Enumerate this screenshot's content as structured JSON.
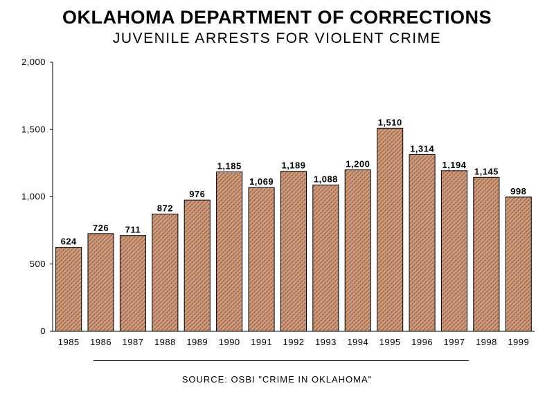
{
  "title": "OKLAHOMA DEPARTMENT OF CORRECTIONS",
  "subtitle": "JUVENILE ARRESTS FOR VIOLENT CRIME",
  "source": "SOURCE: OSBI \"CRIME IN OKLAHOMA\"",
  "colors": {
    "bar_fill": "#b8845f",
    "bar_texture_light": "#d9a392",
    "bar_texture_dark": "#8a6a3a",
    "bar_outline": "#000000",
    "axis": "#000000"
  },
  "chart_data": {
    "type": "bar",
    "title": "OKLAHOMA DEPARTMENT OF CORRECTIONS",
    "subtitle": "JUVENILE ARRESTS FOR VIOLENT CRIME",
    "xlabel": "",
    "ylabel": "",
    "categories": [
      "1985",
      "1986",
      "1987",
      "1988",
      "1989",
      "1990",
      "1991",
      "1992",
      "1993",
      "1994",
      "1995",
      "1996",
      "1997",
      "1998",
      "1999"
    ],
    "values": [
      624,
      726,
      711,
      872,
      976,
      1185,
      1069,
      1189,
      1088,
      1200,
      1510,
      1314,
      1194,
      1145,
      998
    ],
    "value_labels": [
      "624",
      "726",
      "711",
      "872",
      "976",
      "1,185",
      "1,069",
      "1,189",
      "1,088",
      "1,200",
      "1,510",
      "1,314",
      "1,194",
      "1,145",
      "998"
    ],
    "ylim": [
      0,
      2000
    ],
    "yticks": [
      0,
      500,
      1000,
      1500,
      2000
    ],
    "ytick_labels": [
      "0",
      "500",
      "1,000",
      "1,500",
      "2,000"
    ],
    "grid": false,
    "legend": "none"
  }
}
